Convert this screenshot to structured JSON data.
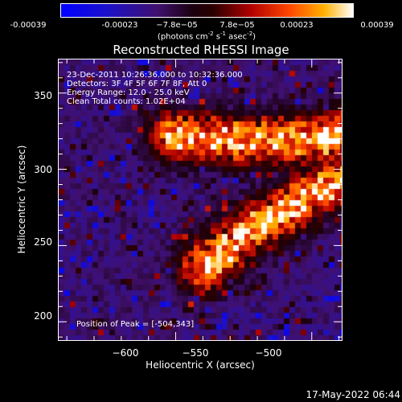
{
  "colorbar": {
    "tick_labels": [
      "-0.00039",
      "-0.00023",
      "−7.8e−05",
      "7.8e−05",
      "0.00023",
      "0.00039"
    ],
    "unit_main": "(photons cm",
    "unit_sup1": "-2",
    "unit_mid": " s",
    "unit_sup2": "-1",
    "unit_mid2": " asec",
    "unit_sup3": "-2",
    "unit_end": ")"
  },
  "title": "Reconstructed RHESSI Image",
  "info_lines": [
    "23-Dec-2011 10:26:36.000 to 10:32:36.000",
    "Detectors: 3F 4F 5F 6F 7F 8F, Att 0",
    "Energy Range: 12.0 - 25.0 keV",
    "Clean     Total counts: 1.02E+04"
  ],
  "peak_text": "Position of Peak = [-504,343]",
  "timestamp": "17-May-2022 06:44",
  "chart_data": {
    "type": "heatmap",
    "title": "Reconstructed RHESSI Image",
    "xlabel": "Heliocentric X (arcsec)",
    "ylabel": "Heliocentric Y (arcsec)",
    "xlim": [
      -643,
      -539
    ],
    "ylim": [
      188,
      372
    ],
    "xticks": [
      -600,
      -550,
      -500
    ],
    "xtick_labels": [
      "−600",
      "−550",
      "−500"
    ],
    "yticks": [
      200,
      250,
      300,
      350
    ],
    "ytick_labels": [
      "200",
      "250",
      "300",
      "350"
    ],
    "color_range": [
      -0.00039,
      0.00039
    ],
    "colormap": "rhessi-sunset (blue-purple-red-orange-yellow-white)",
    "peak_position": [
      -504,
      343
    ],
    "emission_ridges": [
      {
        "name": "upper ridge",
        "points": [
          [
            -600,
            322
          ],
          [
            -575,
            318
          ],
          [
            -545,
            320
          ],
          [
            -520,
            332
          ],
          [
            -505,
            345
          ]
        ]
      },
      {
        "name": "lower ridge",
        "points": [
          [
            -590,
            235
          ],
          [
            -575,
            256
          ],
          [
            -565,
            268
          ],
          [
            -548,
            286
          ],
          [
            -530,
            298
          ]
        ]
      }
    ]
  }
}
